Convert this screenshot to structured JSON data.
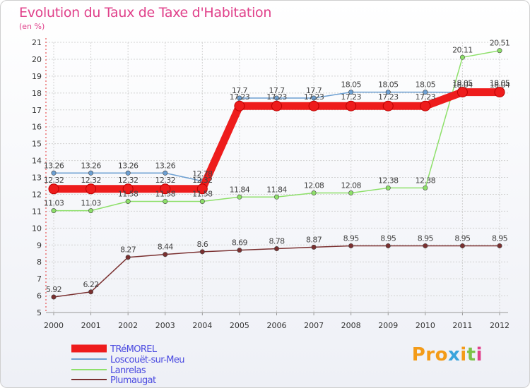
{
  "header": {
    "title": "Evolution du Taux de Taxe d'Habitation",
    "subtitle": "(en %)"
  },
  "logo": {
    "parts": [
      "Pro",
      "x",
      "i",
      "t",
      "i"
    ]
  },
  "chart_data": {
    "type": "line",
    "title": "Evolution du Taux de Taxe d'Habitation",
    "ylabel": "(en %)",
    "xlabel": "",
    "x": [
      "2000",
      "2001",
      "2002",
      "2003",
      "2004",
      "2005",
      "2006",
      "2007",
      "2008",
      "2009",
      "2010",
      "2011",
      "2012"
    ],
    "ylim": [
      5,
      21
    ],
    "yticks": [
      5,
      6,
      7,
      8,
      9,
      10,
      11,
      12,
      13,
      14,
      15,
      16,
      17,
      18,
      19,
      20,
      21
    ],
    "legend_position": "bottom-left",
    "series": [
      {
        "name": "TRéMOREL",
        "color": "#ee1c1c",
        "values": [
          12.32,
          12.32,
          12.32,
          12.32,
          12.32,
          17.23,
          17.23,
          17.23,
          17.23,
          17.23,
          17.23,
          18.05,
          18.05
        ],
        "labels": [
          "12.32",
          "12.32",
          "12.32",
          "12.32",
          "12.32",
          "17.23",
          "17.23",
          "17.23",
          "17.23",
          "17.23",
          "17.23",
          "18.05",
          "18.05"
        ]
      },
      {
        "name": "Loscouët-sur-Meu",
        "color": "#6c9fd2",
        "values": [
          13.26,
          13.26,
          13.26,
          13.26,
          12.78,
          17.7,
          17.7,
          17.7,
          18.05,
          18.05,
          18.05,
          18.04,
          18.04
        ],
        "labels": [
          "13.26",
          "13.26",
          "13.26",
          "13.26",
          "12.78",
          "17.7",
          "17.7",
          "17.7",
          "18.05",
          "18.05",
          "18.05",
          "18.04",
          "18.04"
        ]
      },
      {
        "name": "Lanrelas",
        "color": "#8ee06a",
        "values": [
          11.03,
          11.03,
          11.58,
          11.58,
          11.58,
          11.84,
          11.84,
          12.08,
          12.08,
          12.38,
          12.38,
          20.11,
          20.51
        ],
        "labels": [
          "11.03",
          "11.03",
          "11.58",
          "11.58",
          "11.58",
          "11.84",
          "11.84",
          "12.08",
          "12.08",
          "12.38",
          "12.38",
          "20.11",
          "20.51"
        ]
      },
      {
        "name": "Plumaugat",
        "color": "#7a3030",
        "values": [
          5.92,
          6.22,
          8.27,
          8.44,
          8.6,
          8.69,
          8.78,
          8.87,
          8.95,
          8.95,
          8.95,
          8.95,
          8.95
        ],
        "labels": [
          "5.92",
          "6.22",
          "8.27",
          "8.44",
          "8.6",
          "8.69",
          "8.78",
          "8.87",
          "8.95",
          "8.95",
          "8.95",
          "8.95",
          "8.95"
        ]
      }
    ]
  }
}
